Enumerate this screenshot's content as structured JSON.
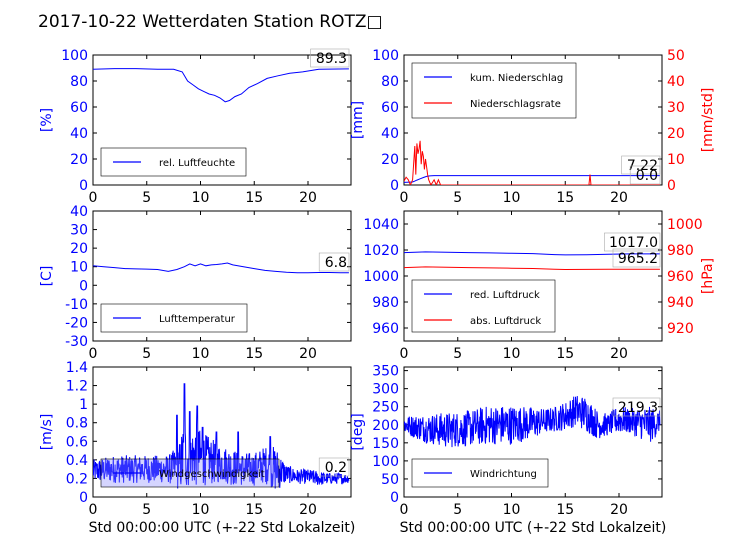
{
  "title": "2017-10-22 Wetterdaten Station ROTZ□",
  "xlabel": "Std 00:00:00 UTC (+-22 Std Lokalzeit)",
  "colors": {
    "primary": "#0000ff",
    "secondary": "#ff0000",
    "legend_shade": "#8888ff"
  },
  "chart_data": [
    {
      "id": "humidity",
      "type": "line",
      "ylabel": "[%]",
      "xlim": [
        0,
        24
      ],
      "ylim": [
        0,
        100
      ],
      "xticks": [
        0,
        5,
        10,
        15,
        20
      ],
      "yticks": [
        0,
        20,
        40,
        60,
        80,
        100
      ],
      "legend": [
        "rel. Luftfeuchte"
      ],
      "legend_loc": "lower-left",
      "annotations": [
        "89.3"
      ],
      "series": [
        {
          "name": "rel. Luftfeuchte",
          "color": "#0000ff",
          "x": [
            0,
            2,
            4,
            6,
            7.5,
            8.3,
            8.8,
            9.3,
            9.8,
            10.3,
            10.8,
            11.3,
            11.8,
            12.3,
            12.7,
            13.2,
            13.8,
            14.5,
            15.3,
            16.2,
            17.2,
            18.3,
            19.5,
            21,
            23.8
          ],
          "y": [
            89,
            89.5,
            89.5,
            89,
            89,
            87,
            80,
            77,
            74,
            72,
            70,
            69,
            67,
            64,
            65,
            68,
            70,
            75,
            78,
            82,
            84,
            86,
            87,
            89,
            89.3
          ]
        }
      ]
    },
    {
      "id": "precipitation",
      "type": "line",
      "ylabel": "[mm]",
      "ylabel2": "[mm/std]",
      "xlim": [
        0,
        24
      ],
      "ylim": [
        0,
        100
      ],
      "ylim2": [
        0,
        50
      ],
      "xticks": [
        0,
        5,
        10,
        15,
        20
      ],
      "yticks": [
        0,
        20,
        40,
        60,
        80,
        100
      ],
      "yticks2": [
        0,
        10,
        20,
        30,
        40,
        50
      ],
      "legend": [
        "kum. Niederschlag",
        "Niederschlagsrate"
      ],
      "legend_loc": "top-left",
      "annotations": [
        "7.22",
        "0.0"
      ],
      "series": [
        {
          "name": "kum. Niederschlag",
          "color": "#0000ff",
          "axis": "left",
          "x": [
            0,
            0.8,
            1.0,
            1.2,
            1.5,
            1.8,
            2.1,
            2.4,
            2.8,
            3.5,
            23.8
          ],
          "y": [
            2,
            2.3,
            3,
            3.8,
            4.8,
            5.8,
            6.6,
            7,
            7.2,
            7.22,
            7.22
          ]
        },
        {
          "name": "Niederschlagsrate",
          "color": "#ff0000",
          "axis": "right",
          "x": [
            0,
            0.2,
            0.4,
            0.6,
            0.8,
            1.0,
            1.1,
            1.2,
            1.3,
            1.4,
            1.5,
            1.6,
            1.7,
            1.8,
            1.9,
            2.0,
            2.1,
            2.2,
            2.3,
            2.5,
            2.8,
            3.0,
            3.2,
            3.4,
            3.6,
            4.5,
            8,
            12,
            15,
            17.2,
            17.3,
            17.4,
            17.5,
            20,
            23.8
          ],
          "y": [
            1.5,
            3,
            2,
            0,
            2,
            15,
            4,
            16,
            12,
            14,
            17,
            8,
            13,
            11,
            6,
            10,
            7,
            4,
            2,
            0,
            2,
            0,
            2,
            0,
            0,
            0,
            0,
            0,
            0,
            0,
            4,
            0,
            0,
            0,
            0
          ]
        }
      ]
    },
    {
      "id": "temperature",
      "type": "line",
      "ylabel": "[C]",
      "xlim": [
        0,
        24
      ],
      "ylim": [
        -30,
        40
      ],
      "xticks": [
        0,
        5,
        10,
        15,
        20
      ],
      "yticks": [
        -30,
        -20,
        -10,
        0,
        10,
        20,
        30,
        40
      ],
      "legend": [
        "Lufttemperatur"
      ],
      "legend_loc": "lower-left",
      "annotations": [
        "6.8"
      ],
      "series": [
        {
          "name": "Lufttemperatur",
          "color": "#0000ff",
          "x": [
            0,
            1,
            2,
            3,
            4,
            5,
            6,
            7,
            7.8,
            8.5,
            9,
            9.5,
            10,
            10.5,
            11,
            11.5,
            12,
            12.5,
            13,
            14,
            15,
            16,
            17,
            18,
            19,
            20,
            21,
            22,
            23,
            23.8
          ],
          "y": [
            10.5,
            10,
            9.5,
            9,
            8.8,
            8.7,
            8.5,
            7.5,
            8.5,
            10,
            11.5,
            10.5,
            11.5,
            10.5,
            11,
            11.2,
            11.5,
            12,
            11,
            10,
            9,
            8,
            7.5,
            7,
            6.8,
            6.8,
            6.9,
            6.9,
            6.8,
            6.8
          ]
        }
      ]
    },
    {
      "id": "pressure",
      "type": "line",
      "ylabel2": "[hPa]",
      "xlim": [
        0,
        24
      ],
      "ylim": [
        950,
        1050
      ],
      "ylim2": [
        910,
        1010
      ],
      "xticks": [
        0,
        5,
        10,
        15,
        20
      ],
      "yticks": [
        960,
        980,
        1000,
        1020,
        1040
      ],
      "yticks2": [
        920,
        940,
        960,
        980,
        1000
      ],
      "legend": [
        "red. Luftdruck",
        "abs. Luftdruck"
      ],
      "legend_loc": "lower-left",
      "annotations": [
        "1017.0",
        "965.2"
      ],
      "series": [
        {
          "name": "red. Luftdruck",
          "color": "#0000ff",
          "axis": "left",
          "x": [
            0,
            2,
            4,
            6,
            8,
            10,
            12,
            14,
            15,
            17,
            19,
            21,
            23.8
          ],
          "y": [
            1018,
            1018.5,
            1018.2,
            1018,
            1017.8,
            1017.5,
            1017.2,
            1016.5,
            1016.2,
            1016.4,
            1016.8,
            1017.0,
            1017.0
          ]
        },
        {
          "name": "abs. Luftdruck",
          "color": "#ff0000",
          "axis": "right",
          "x": [
            0,
            2,
            4,
            6,
            8,
            10,
            12,
            14,
            15,
            17,
            19,
            21,
            23.8
          ],
          "y": [
            966.5,
            967,
            966.8,
            966.5,
            966.2,
            966,
            965.8,
            965.2,
            965,
            965.1,
            965.2,
            965.2,
            965.2
          ]
        }
      ]
    },
    {
      "id": "windspeed",
      "type": "line",
      "ylabel": "[m/s]",
      "xlim": [
        0,
        24
      ],
      "ylim": [
        0,
        1.4
      ],
      "xticks": [
        0,
        5,
        10,
        15,
        20
      ],
      "yticks": [
        0.0,
        0.2,
        0.4,
        0.6,
        0.8,
        1.0,
        1.2,
        1.4
      ],
      "legend": [
        "Windgeschwindigkeit"
      ],
      "legend_loc": "lower-left",
      "annotations": [
        "0.2"
      ],
      "series": [
        {
          "name": "Windgeschwindigkeit",
          "color": "#0000ff",
          "noisy": true,
          "samples": 720,
          "envelope_x": [
            0,
            2,
            4,
            6,
            7,
            8,
            8.5,
            9,
            9.5,
            10,
            11,
            12,
            13,
            14,
            15,
            16,
            17,
            18,
            19,
            20,
            21,
            22,
            23,
            23.8
          ],
          "envelope_center": [
            0.28,
            0.3,
            0.3,
            0.3,
            0.3,
            0.32,
            0.45,
            0.4,
            0.45,
            0.42,
            0.38,
            0.36,
            0.32,
            0.3,
            0.3,
            0.35,
            0.3,
            0.25,
            0.22,
            0.22,
            0.2,
            0.2,
            0.2,
            0.2
          ],
          "envelope_amplitude": [
            0.12,
            0.15,
            0.15,
            0.15,
            0.15,
            0.25,
            0.4,
            0.3,
            0.35,
            0.3,
            0.25,
            0.2,
            0.2,
            0.18,
            0.18,
            0.2,
            0.25,
            0.1,
            0.08,
            0.08,
            0.08,
            0.06,
            0.06,
            0.05
          ],
          "peaks_x": [
            7.8,
            8.5,
            9.0,
            9.7,
            10.2,
            11.5,
            13.5,
            16.5
          ],
          "peaks_y": [
            0.88,
            1.22,
            0.92,
            0.98,
            0.75,
            0.7,
            0.7,
            0.65
          ]
        }
      ]
    },
    {
      "id": "winddirection",
      "type": "line",
      "ylabel": "[deg]",
      "xlim": [
        0,
        24
      ],
      "ylim": [
        0,
        360
      ],
      "xticks": [
        0,
        5,
        10,
        15,
        20
      ],
      "yticks": [
        0,
        50,
        100,
        150,
        200,
        250,
        300,
        350
      ],
      "legend": [
        "Windrichtung"
      ],
      "legend_loc": "lower-left",
      "annotations": [
        "219.3"
      ],
      "series": [
        {
          "name": "Windrichtung",
          "color": "#0000ff",
          "noisy": true,
          "samples": 720,
          "envelope_x": [
            0,
            2,
            4,
            6,
            8,
            10,
            12,
            13,
            14,
            15,
            16,
            17,
            18,
            19,
            20,
            21,
            22,
            23,
            23.8
          ],
          "envelope_center": [
            200,
            190,
            185,
            190,
            200,
            200,
            205,
            210,
            215,
            225,
            240,
            230,
            200,
            200,
            215,
            210,
            205,
            200,
            210
          ],
          "envelope_amplitude": [
            25,
            40,
            50,
            50,
            55,
            55,
            45,
            35,
            35,
            40,
            45,
            50,
            40,
            30,
            40,
            35,
            45,
            50,
            30
          ]
        }
      ]
    }
  ]
}
